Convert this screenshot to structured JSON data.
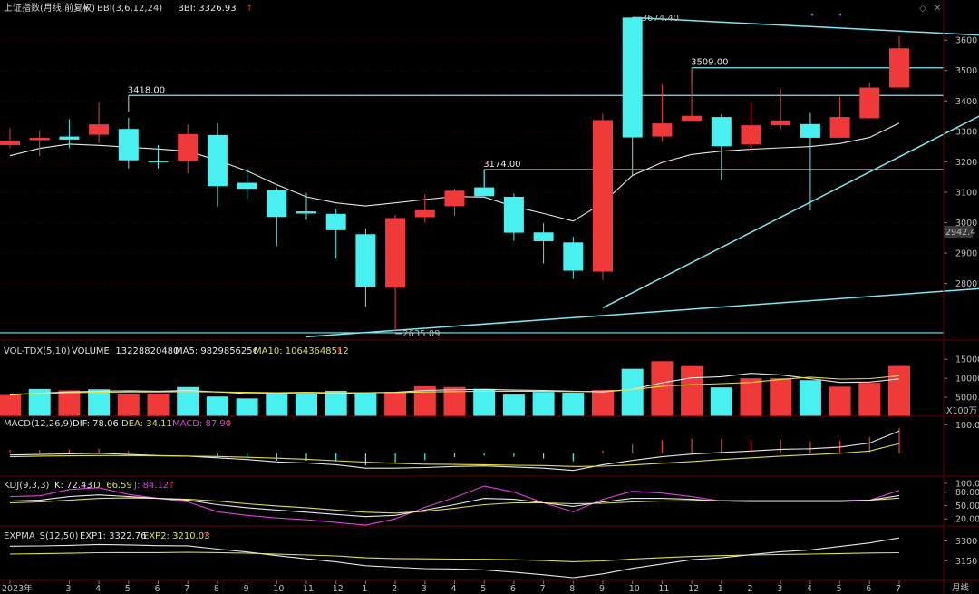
{
  "colors": {
    "up": "#f03a3a",
    "down": "#48f0f0",
    "line_white": "#e8e8e8",
    "line_yellow": "#e0e040",
    "line_magenta": "#e040e0",
    "trend": "#7fe8f0",
    "level": "#f0f0f0",
    "current_price_box": "#383838"
  },
  "main": {
    "title": "上证指数(月线,前复权)",
    "indicator_label": "BBI(3,6,12,24)",
    "indicator_value": "BBI: 3326.93",
    "current_price": "2942.4",
    "annotations": [
      "3418.00",
      "3174.00",
      "3509.00",
      "3674.40",
      "2635.09"
    ],
    "yticks": [
      "3600",
      "3500",
      "3400",
      "3300",
      "3200",
      "3100",
      "3000",
      "2900",
      "2800"
    ],
    "xticks": [
      "2023年",
      "3",
      "4",
      "5",
      "6",
      "7",
      "8",
      "9",
      "10",
      "11",
      "12",
      "1",
      "2",
      "3",
      "4",
      "5",
      "6",
      "7",
      "8",
      "9",
      "10",
      "11",
      "12",
      "1",
      "2",
      "3",
      "4",
      "5",
      "6",
      "7"
    ],
    "period_label": "月线"
  },
  "volume": {
    "label": "VOL-TDX(5,10)",
    "volume_value": "VOLUME: 13228820480",
    "ma5_value": "MA5: 9829856256",
    "ma10_value": "MA10: 10643648512",
    "yticks": [
      "15000",
      "10000",
      "5000"
    ],
    "unit": "X100万"
  },
  "macd": {
    "label": "MACD(12,26,9)",
    "dif_value": "DIF: 78.06",
    "dea_value": "DEA: 34.11",
    "macd_value": "MACD: 87.90",
    "yticks": [
      "100.0"
    ]
  },
  "kdj": {
    "label": "KDJ(9,3,3)",
    "k_value": "K: 72.43",
    "d_value": "D: 66.59",
    "j_value": "J: 84.12",
    "yticks": [
      "100.00",
      "80.00",
      "50.00",
      "20.00"
    ]
  },
  "expma": {
    "label": "EXPMA_S(12,50)",
    "exp1_value": "EXP1: 3322.76",
    "exp2_value": "EXP2: 3210.03",
    "yticks": [
      "3300",
      "3150"
    ]
  },
  "chart_data": [
    {
      "type": "candlestick",
      "title": "上证指数(月线,前复权)",
      "ylim": [
        2620,
        3690
      ],
      "categories": [
        "2023-01",
        "2023-02",
        "2023-03",
        "2023-04",
        "2023-05",
        "2023-06",
        "2023-07",
        "2023-08",
        "2023-09",
        "2023-10",
        "2023-11",
        "2023-12",
        "2024-01",
        "2024-02",
        "2024-03",
        "2024-04",
        "2024-05",
        "2024-06",
        "2024-07",
        "2024-08",
        "2024-09",
        "2024-10",
        "2024-11",
        "2024-12",
        "2025-01",
        "2025-02",
        "2025-03",
        "2025-04",
        "2025-05",
        "2025-06",
        "2025-07"
      ],
      "ohlc": [
        [
          3255,
          3311,
          3245,
          3270
        ],
        [
          3271,
          3304,
          3219,
          3279
        ],
        [
          3283,
          3340,
          3245,
          3273
        ],
        [
          3289,
          3395,
          3261,
          3323
        ],
        [
          3308,
          3345,
          3178,
          3205
        ],
        [
          3203,
          3255,
          3178,
          3202
        ],
        [
          3204,
          3323,
          3161,
          3291
        ],
        [
          3288,
          3327,
          3053,
          3120
        ],
        [
          3131,
          3177,
          3078,
          3111
        ],
        [
          3107,
          3115,
          2923,
          3019
        ],
        [
          3037,
          3097,
          3009,
          3030
        ],
        [
          3029,
          3044,
          2882,
          2975
        ],
        [
          2962,
          2980,
          2724,
          2789
        ],
        [
          2786,
          3025,
          2635,
          3015
        ],
        [
          3018,
          3093,
          3000,
          3041
        ],
        [
          3054,
          3111,
          3022,
          3105
        ],
        [
          3116,
          3175,
          3093,
          3087
        ],
        [
          3085,
          3096,
          2940,
          2967
        ],
        [
          2968,
          2998,
          2866,
          2939
        ],
        [
          2935,
          2954,
          2815,
          2842
        ],
        [
          2839,
          3358,
          2812,
          3337
        ],
        [
          3674,
          3674,
          3156,
          3280
        ],
        [
          3283,
          3455,
          3266,
          3326
        ],
        [
          3335,
          3509,
          3335,
          3351
        ],
        [
          3347,
          3356,
          3140,
          3251
        ],
        [
          3257,
          3393,
          3233,
          3320
        ],
        [
          3320,
          3440,
          3307,
          3336
        ],
        [
          3324,
          3360,
          3040,
          3279
        ],
        [
          3279,
          3414,
          3279,
          3347
        ],
        [
          3343,
          3460,
          3342,
          3444
        ],
        [
          3444,
          3612,
          3444,
          3573
        ]
      ],
      "series": [
        {
          "name": "BBI",
          "values": [
            3220,
            3244,
            3258,
            3254,
            3248,
            3242,
            3235,
            3205,
            3170,
            3125,
            3085,
            3065,
            3055,
            3065,
            3076,
            3086,
            3084,
            3053,
            3030,
            3005,
            3065,
            3155,
            3198,
            3224,
            3235,
            3241,
            3246,
            3250,
            3260,
            3280,
            3327
          ]
        }
      ],
      "levels": [
        {
          "label": "3418.00",
          "value": 3418,
          "from": "2023-05"
        },
        {
          "label": "3174.00",
          "value": 3174,
          "from": "2024-05"
        },
        {
          "label": "3509.00",
          "value": 3509,
          "from": "2024-12"
        }
      ],
      "markers": [
        {
          "label": "3674.40",
          "value": 3674.4,
          "at": "2024-10"
        },
        {
          "label": "2635.09",
          "value": 2635.09,
          "at": "2024-02"
        }
      ],
      "trendlines": [
        {
          "from": [
            "2024-10",
            3674
          ],
          "to": [
            "2025-07+3",
            3615
          ]
        },
        {
          "from": [
            "2024-09",
            2720
          ],
          "to": [
            "2025-07+3",
            3365
          ]
        },
        {
          "from": [
            "2023-11",
            2625
          ],
          "to": [
            "2025-07+3",
            2785
          ]
        }
      ],
      "hline": 2638
    },
    {
      "type": "bar",
      "title": "VOL-TDX(5,10)",
      "unit": "X100万",
      "ylim": [
        0,
        16000
      ],
      "values": [
        5600,
        7200,
        6800,
        7100,
        5800,
        5900,
        7700,
        5200,
        4700,
        6300,
        5900,
        6700,
        6100,
        6400,
        7900,
        7700,
        7200,
        5700,
        6400,
        6200,
        6900,
        12500,
        14500,
        13200,
        7600,
        10000,
        10000,
        9500,
        7800,
        8800,
        13229
      ],
      "up": [
        true,
        false,
        true,
        false,
        true,
        true,
        false,
        false,
        false,
        false,
        false,
        false,
        false,
        true,
        true,
        true,
        false,
        false,
        false,
        false,
        true,
        false,
        true,
        true,
        false,
        true,
        true,
        false,
        true,
        true,
        true
      ],
      "series": [
        {
          "name": "MA5",
          "values": [
            5600,
            6100,
            6400,
            6600,
            6700,
            6600,
            6800,
            6400,
            6000,
            6000,
            6000,
            6000,
            6200,
            6300,
            6800,
            7000,
            7100,
            6900,
            6800,
            6600,
            6400,
            7100,
            8800,
            10100,
            10400,
            11300,
            10900,
            9900,
            8900,
            9000,
            9830
          ]
        },
        {
          "name": "MA10",
          "values": [
            5800,
            6000,
            6200,
            6300,
            6400,
            6400,
            6500,
            6400,
            6300,
            6200,
            6300,
            6200,
            6200,
            6200,
            6400,
            6500,
            6600,
            6600,
            6600,
            6500,
            6600,
            7000,
            7900,
            8300,
            8600,
            8900,
            9700,
            10300,
            9800,
            9900,
            10644
          ]
        }
      ]
    },
    {
      "type": "line",
      "title": "MACD(12,26,9)",
      "ylim": [
        -80,
        120
      ],
      "series": [
        {
          "name": "DIF",
          "values": [
            -6,
            -4,
            -2,
            0,
            -4,
            -8,
            -10,
            -16,
            -22,
            -30,
            -34,
            -40,
            -52,
            -52,
            -50,
            -46,
            -44,
            -48,
            -52,
            -60,
            -40,
            -25,
            -12,
            -3,
            3,
            8,
            14,
            16,
            22,
            36,
            78
          ]
        },
        {
          "name": "DEA",
          "values": [
            -12,
            -10,
            -9,
            -8,
            -8,
            -9,
            -10,
            -11,
            -14,
            -17,
            -21,
            -26,
            -31,
            -35,
            -38,
            -39,
            -40,
            -42,
            -43,
            -46,
            -45,
            -41,
            -35,
            -29,
            -22,
            -16,
            -10,
            -5,
            0,
            8,
            34
          ]
        },
        {
          "name": "MACD",
          "values": [
            12,
            12,
            14,
            16,
            8,
            2,
            0,
            -10,
            -16,
            -26,
            -26,
            -28,
            -42,
            -34,
            -24,
            -14,
            -8,
            -12,
            -18,
            -28,
            10,
            32,
            46,
            52,
            50,
            48,
            48,
            42,
            44,
            56,
            88
          ]
        }
      ]
    },
    {
      "type": "line",
      "title": "KDJ(9,3,3)",
      "ylim": [
        0,
        110
      ],
      "series": [
        {
          "name": "K",
          "values": [
            60,
            62,
            70,
            74,
            70,
            66,
            62,
            52,
            45,
            40,
            35,
            30,
            25,
            28,
            40,
            52,
            66,
            64,
            56,
            48,
            58,
            66,
            66,
            64,
            60,
            60,
            60,
            60,
            60,
            62,
            72.43
          ]
        },
        {
          "name": "D",
          "values": [
            56,
            58,
            62,
            66,
            67,
            66,
            64,
            60,
            54,
            49,
            45,
            40,
            35,
            33,
            37,
            44,
            52,
            56,
            56,
            54,
            55,
            58,
            60,
            61,
            61,
            61,
            61,
            61,
            61,
            62,
            66.59
          ]
        },
        {
          "name": "J",
          "values": [
            70,
            72,
            86,
            90,
            75,
            66,
            58,
            36,
            28,
            22,
            18,
            12,
            6,
            20,
            46,
            68,
            94,
            80,
            56,
            36,
            64,
            82,
            78,
            70,
            60,
            58,
            58,
            58,
            58,
            62,
            84.12
          ]
        }
      ]
    },
    {
      "type": "line",
      "title": "EXPMA_S(12,50)",
      "ylim": [
        3000,
        3400
      ],
      "series": [
        {
          "name": "EXP1",
          "values": [
            3260,
            3262,
            3266,
            3273,
            3270,
            3264,
            3263,
            3238,
            3216,
            3188,
            3164,
            3141,
            3112,
            3100,
            3090,
            3087,
            3080,
            3063,
            3043,
            3021,
            3050,
            3092,
            3125,
            3157,
            3172,
            3196,
            3218,
            3232,
            3258,
            3285,
            3322.76
          ]
        },
        {
          "name": "EXP2",
          "values": [
            3200,
            3203,
            3206,
            3210,
            3211,
            3211,
            3214,
            3211,
            3207,
            3199,
            3193,
            3186,
            3172,
            3166,
            3164,
            3162,
            3161,
            3157,
            3151,
            3142,
            3148,
            3163,
            3173,
            3182,
            3188,
            3193,
            3197,
            3200,
            3204,
            3208,
            3210.03
          ]
        }
      ]
    }
  ]
}
